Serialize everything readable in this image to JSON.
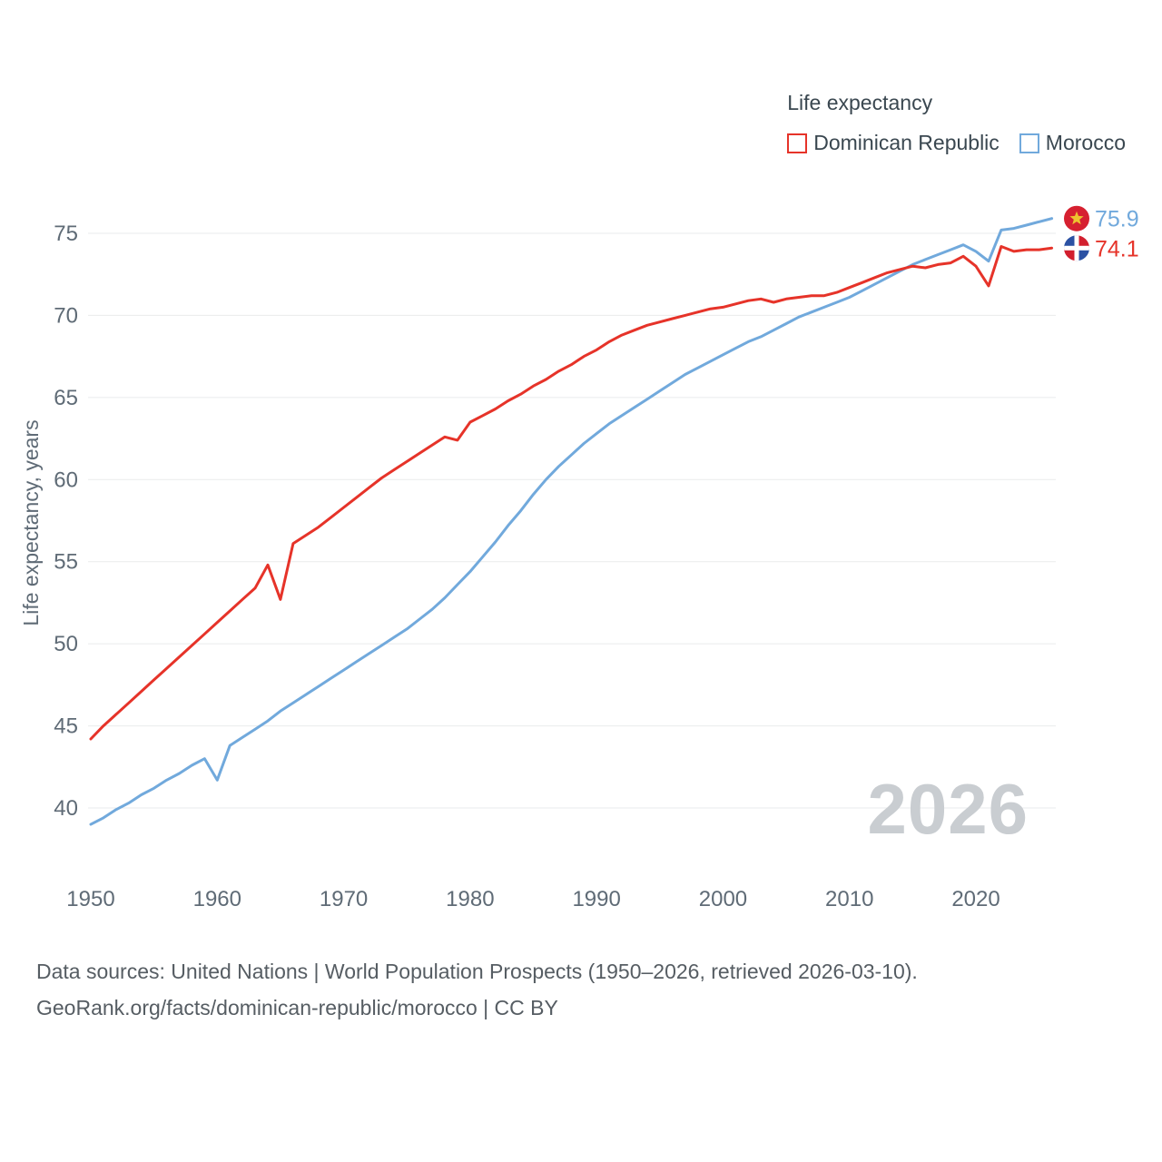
{
  "legend": {
    "title": "Life expectancy"
  },
  "footer": {
    "line1": "Data sources: United Nations | World Population Prospects (1950–2026, retrieved 2026-03-10).",
    "line2": "GeoRank.org/facts/dominican-republic/morocco | CC BY"
  },
  "chart_data": {
    "type": "line",
    "title": "Life expectancy",
    "ylabel": "Life expectancy, years",
    "watermark": "2026",
    "x_start": 1950,
    "x_end": 2026,
    "x_ticks": [
      1950,
      1960,
      1970,
      1980,
      1990,
      2000,
      2010,
      2020
    ],
    "y_ticks": [
      40,
      45,
      50,
      55,
      60,
      65,
      70,
      75
    ],
    "ylim": [
      38.5,
      77
    ],
    "grid": true,
    "legend_position": "top-right",
    "series": [
      {
        "name": "Dominican Republic",
        "color": "#e63329",
        "end_label": "74.1",
        "flag": "dominican-republic",
        "values": [
          44.2,
          45.0,
          45.7,
          46.4,
          47.1,
          47.8,
          48.5,
          49.2,
          49.9,
          50.6,
          51.3,
          52.0,
          52.7,
          53.4,
          54.8,
          52.7,
          56.1,
          56.6,
          57.1,
          57.7,
          58.3,
          58.9,
          59.5,
          60.1,
          60.6,
          61.1,
          61.6,
          62.1,
          62.6,
          62.4,
          63.5,
          63.9,
          64.3,
          64.8,
          65.2,
          65.7,
          66.1,
          66.6,
          67.0,
          67.5,
          67.9,
          68.4,
          68.8,
          69.1,
          69.4,
          69.6,
          69.8,
          70.0,
          70.2,
          70.4,
          70.5,
          70.7,
          70.9,
          71.0,
          70.8,
          71.0,
          71.1,
          71.2,
          71.2,
          71.4,
          71.7,
          72.0,
          72.3,
          72.6,
          72.8,
          73.0,
          72.9,
          73.1,
          73.2,
          73.6,
          73.0,
          71.8,
          74.2,
          73.9,
          74.0,
          74.0,
          74.1
        ]
      },
      {
        "name": "Morocco",
        "color": "#71a9dc",
        "end_label": "75.9",
        "flag": "morocco",
        "values": [
          39.0,
          39.4,
          39.9,
          40.3,
          40.8,
          41.2,
          41.7,
          42.1,
          42.6,
          43.0,
          41.7,
          43.8,
          44.3,
          44.8,
          45.3,
          45.9,
          46.4,
          46.9,
          47.4,
          47.9,
          48.4,
          48.9,
          49.4,
          49.9,
          50.4,
          50.9,
          51.5,
          52.1,
          52.8,
          53.6,
          54.4,
          55.3,
          56.2,
          57.2,
          58.1,
          59.1,
          60.0,
          60.8,
          61.5,
          62.2,
          62.8,
          63.4,
          63.9,
          64.4,
          64.9,
          65.4,
          65.9,
          66.4,
          66.8,
          67.2,
          67.6,
          68.0,
          68.4,
          68.7,
          69.1,
          69.5,
          69.9,
          70.2,
          70.5,
          70.8,
          71.1,
          71.5,
          71.9,
          72.3,
          72.7,
          73.1,
          73.4,
          73.7,
          74.0,
          74.3,
          73.9,
          73.3,
          75.2,
          75.3,
          75.5,
          75.7,
          75.9
        ]
      }
    ]
  }
}
